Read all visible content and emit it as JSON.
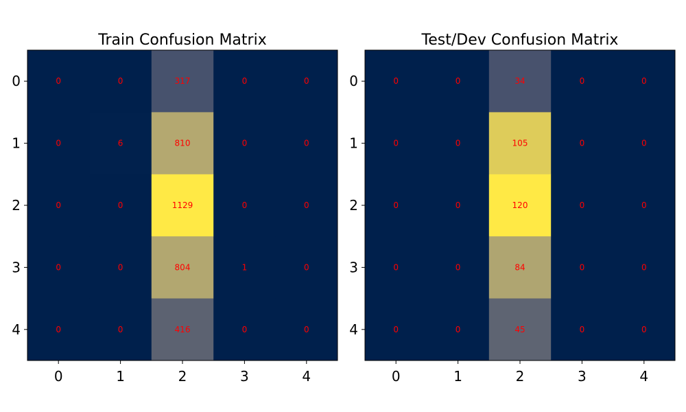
{
  "chart_data": [
    {
      "type": "heatmap",
      "title": "Train Confusion Matrix",
      "xlabel": "",
      "ylabel": "",
      "x_ticks": [
        "0",
        "1",
        "2",
        "3",
        "4"
      ],
      "y_ticks": [
        "0",
        "1",
        "2",
        "3",
        "4"
      ],
      "values": [
        [
          0,
          0,
          317,
          0,
          0
        ],
        [
          0,
          6,
          810,
          0,
          0
        ],
        [
          0,
          0,
          1129,
          0,
          0
        ],
        [
          0,
          0,
          804,
          1,
          0
        ],
        [
          0,
          0,
          416,
          0,
          0
        ]
      ],
      "colormap": "cividis",
      "annotation_color": "#ff0000",
      "grid": false
    },
    {
      "type": "heatmap",
      "title": "Test/Dev Confusion Matrix",
      "xlabel": "",
      "ylabel": "",
      "x_ticks": [
        "0",
        "1",
        "2",
        "3",
        "4"
      ],
      "y_ticks": [
        "0",
        "1",
        "2",
        "3",
        "4"
      ],
      "values": [
        [
          0,
          0,
          34,
          0,
          0
        ],
        [
          0,
          0,
          105,
          0,
          0
        ],
        [
          0,
          0,
          120,
          0,
          0
        ],
        [
          0,
          0,
          84,
          0,
          0
        ],
        [
          0,
          0,
          45,
          0,
          0
        ]
      ],
      "colormap": "cividis",
      "annotation_color": "#ff0000",
      "grid": false
    }
  ]
}
